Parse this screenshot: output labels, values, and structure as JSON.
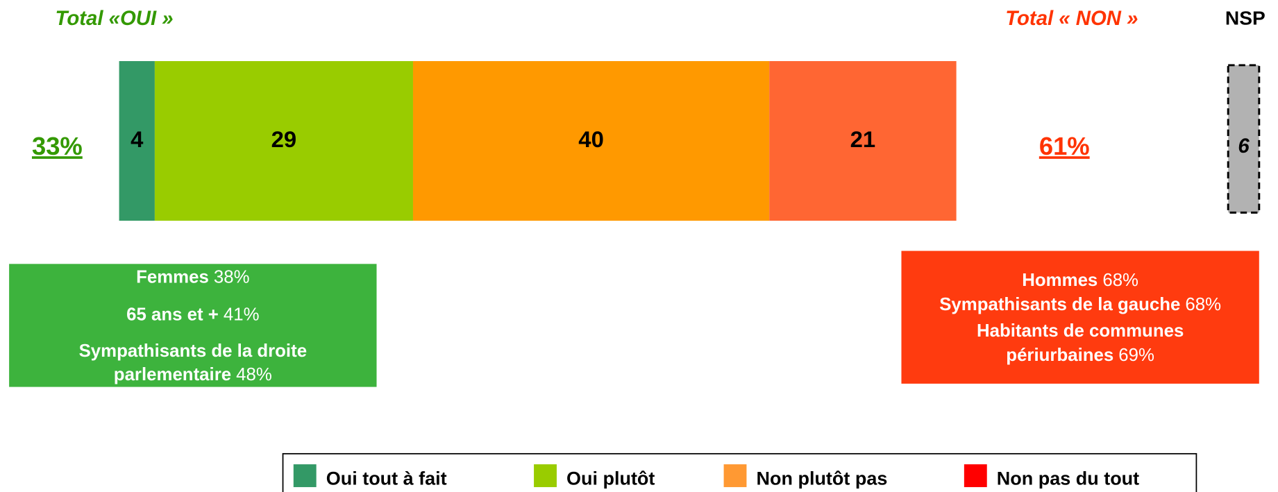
{
  "chart_data": {
    "type": "bar",
    "orientation": "horizontal",
    "stacked": true,
    "series": [
      {
        "name": "Oui tout à fait",
        "color": "#339966",
        "legend_color": "#339966",
        "values": [
          4
        ]
      },
      {
        "name": "Oui plutôt",
        "color": "#99cc00",
        "legend_color": "#99cc00",
        "values": [
          29
        ]
      },
      {
        "name": "Non plutôt pas",
        "color": "#ff9900",
        "legend_color": "#ff9933",
        "values": [
          40
        ]
      },
      {
        "name": "Non pas du tout",
        "color": "#ff6633",
        "legend_color": "#ff0000",
        "values": [
          21
        ]
      }
    ],
    "nsp": {
      "label": "NSP",
      "value": 6,
      "color": "#b2b2b2"
    },
    "totals": [
      {
        "title": "Total «OUI »",
        "value": 33,
        "value_label": "33%",
        "color": "#339900"
      },
      {
        "title": "Total « NON »",
        "value": 61,
        "value_label": "61%",
        "color": "#ff3300"
      }
    ],
    "boxes": [
      {
        "color": "#3db33d",
        "lines": [
          [
            {
              "text": "Femmes",
              "bold": true
            },
            {
              "text": "38%"
            }
          ],
          [
            {
              "text": "65 ans et +",
              "bold": true
            },
            {
              "text": "41%"
            }
          ],
          [
            {
              "text": "Sympathisants de la droite",
              "bold": true
            }
          ],
          [
            {
              "text": "parlementaire",
              "bold": true
            },
            {
              "text": "48%"
            }
          ]
        ]
      },
      {
        "color": "#ff3b0f",
        "lines": [
          [
            {
              "text": "Hommes",
              "bold": true
            },
            {
              "text": "68%"
            }
          ],
          [
            {
              "text": "Sympathisants de la gauche",
              "bold": true
            },
            {
              "text": "68%"
            }
          ],
          [
            {
              "text": "Habitants de communes",
              "bold": true
            }
          ],
          [
            {
              "text": "périurbaines",
              "bold": true
            },
            {
              "text": "69%"
            }
          ]
        ]
      }
    ]
  }
}
